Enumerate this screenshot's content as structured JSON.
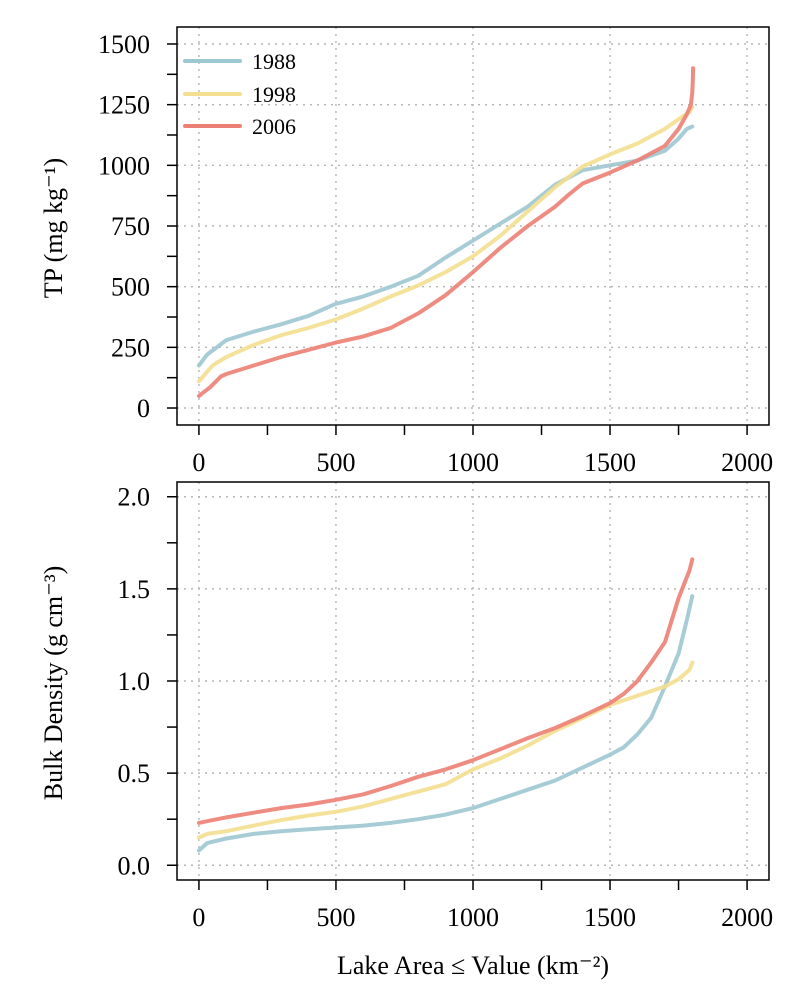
{
  "chart_data": [
    {
      "type": "line",
      "panel": "top",
      "title": "",
      "xlabel": "",
      "ylabel": "TP (mg kg⁻¹)",
      "xlim": [
        -80,
        2080
      ],
      "ylim": [
        -70,
        1570
      ],
      "xticks": [
        0,
        500,
        1000,
        1500,
        2000
      ],
      "xtick_labels": [
        "0",
        "500",
        "1000",
        "1500",
        "2000"
      ],
      "xminor": [
        250,
        750,
        1250,
        1750
      ],
      "yticks": [
        0,
        250,
        500,
        750,
        1000,
        1250,
        1500
      ],
      "ytick_labels": [
        "0",
        "250",
        "500",
        "750",
        "1000",
        "1250",
        "1500"
      ],
      "yminor": [
        125,
        375,
        625,
        875,
        1125,
        1375
      ],
      "grid": true,
      "legend": {
        "position": "top-left"
      },
      "series": [
        {
          "name": "1988",
          "color": "#9dc7d2",
          "x": [
            0,
            30,
            100,
            200,
            300,
            400,
            500,
            520,
            600,
            700,
            800,
            900,
            1000,
            1100,
            1200,
            1300,
            1400,
            1500,
            1600,
            1700,
            1750,
            1780,
            1800
          ],
          "y": [
            175,
            220,
            280,
            315,
            345,
            380,
            430,
            435,
            460,
            500,
            545,
            620,
            690,
            760,
            830,
            920,
            980,
            1000,
            1020,
            1060,
            1110,
            1150,
            1160
          ]
        },
        {
          "name": "1998",
          "color": "#f3df8f",
          "x": [
            0,
            50,
            100,
            200,
            300,
            400,
            500,
            600,
            700,
            800,
            900,
            1000,
            1100,
            1200,
            1300,
            1400,
            1500,
            1600,
            1700,
            1750,
            1790,
            1800
          ],
          "y": [
            110,
            175,
            210,
            260,
            300,
            330,
            365,
            410,
            460,
            505,
            560,
            625,
            710,
            810,
            910,
            995,
            1045,
            1090,
            1150,
            1190,
            1220,
            1240
          ]
        },
        {
          "name": "2006",
          "color": "#ec8074",
          "x": [
            0,
            40,
            80,
            100,
            200,
            300,
            400,
            500,
            600,
            700,
            800,
            900,
            1000,
            1100,
            1200,
            1300,
            1350,
            1400,
            1500,
            1600,
            1700,
            1750,
            1780,
            1795,
            1800,
            1802,
            1803
          ],
          "y": [
            50,
            85,
            130,
            140,
            175,
            210,
            240,
            270,
            295,
            330,
            390,
            465,
            560,
            660,
            750,
            830,
            880,
            925,
            970,
            1020,
            1080,
            1150,
            1210,
            1250,
            1300,
            1350,
            1400
          ]
        }
      ]
    },
    {
      "type": "line",
      "panel": "bottom",
      "title": "",
      "xlabel": "Lake Area ≤ Value (km⁻²)",
      "ylabel": "Bulk Density (g cm⁻³)",
      "xlim": [
        -80,
        2080
      ],
      "ylim": [
        -0.08,
        2.08
      ],
      "xticks": [
        0,
        500,
        1000,
        1500,
        2000
      ],
      "xtick_labels": [
        "0",
        "500",
        "1000",
        "1500",
        "2000"
      ],
      "xminor": [
        250,
        750,
        1250,
        1750
      ],
      "yticks": [
        0,
        0.5,
        1,
        1.5,
        2
      ],
      "ytick_labels": [
        "0.0",
        "0.5",
        "1.0",
        "1.5",
        "2.0"
      ],
      "yminor": [
        0.25,
        0.75,
        1.25,
        1.75
      ],
      "grid": true,
      "series": [
        {
          "name": "1988",
          "color": "#9dc7d2",
          "x": [
            0,
            30,
            100,
            200,
            300,
            400,
            500,
            600,
            700,
            800,
            900,
            1000,
            1100,
            1200,
            1300,
            1400,
            1500,
            1550,
            1600,
            1650,
            1700,
            1750,
            1780,
            1800
          ],
          "y": [
            0.08,
            0.12,
            0.145,
            0.17,
            0.185,
            0.195,
            0.205,
            0.215,
            0.23,
            0.25,
            0.275,
            0.31,
            0.36,
            0.41,
            0.46,
            0.53,
            0.6,
            0.64,
            0.71,
            0.8,
            0.97,
            1.15,
            1.33,
            1.46
          ]
        },
        {
          "name": "1998",
          "color": "#f3df8f",
          "x": [
            0,
            30,
            100,
            200,
            300,
            400,
            500,
            600,
            700,
            800,
            900,
            1000,
            1100,
            1200,
            1300,
            1400,
            1500,
            1600,
            1700,
            1750,
            1790,
            1800
          ],
          "y": [
            0.15,
            0.17,
            0.185,
            0.215,
            0.245,
            0.27,
            0.29,
            0.32,
            0.36,
            0.4,
            0.44,
            0.52,
            0.58,
            0.65,
            0.73,
            0.8,
            0.87,
            0.92,
            0.97,
            1.01,
            1.06,
            1.1
          ]
        },
        {
          "name": "2006",
          "color": "#ec8074",
          "x": [
            0,
            50,
            100,
            200,
            300,
            400,
            500,
            600,
            700,
            800,
            900,
            1000,
            1100,
            1200,
            1300,
            1400,
            1500,
            1550,
            1600,
            1650,
            1700,
            1750,
            1790,
            1800
          ],
          "y": [
            0.23,
            0.245,
            0.26,
            0.285,
            0.31,
            0.33,
            0.355,
            0.385,
            0.43,
            0.48,
            0.52,
            0.57,
            0.63,
            0.69,
            0.745,
            0.81,
            0.88,
            0.93,
            1.0,
            1.1,
            1.21,
            1.45,
            1.6,
            1.66
          ]
        }
      ]
    }
  ]
}
